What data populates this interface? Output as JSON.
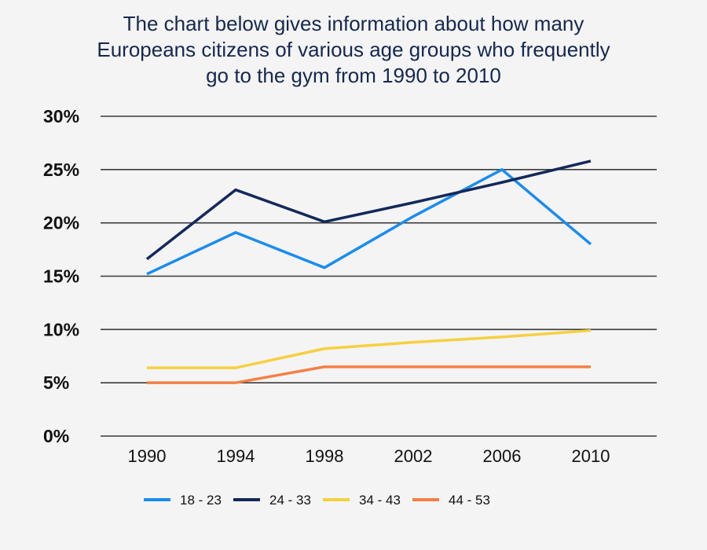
{
  "chart_data": {
    "type": "line",
    "title": "The chart below gives information about how many\nEuropeans citizens of various age groups who frequently\ngo to the gym from 1990 to 2010",
    "xlabel": "",
    "ylabel": "",
    "categories": [
      "1990",
      "1994",
      "1998",
      "2002",
      "2006",
      "2010"
    ],
    "ylim": [
      0,
      30
    ],
    "yticks": [
      0,
      5,
      10,
      15,
      20,
      25,
      30
    ],
    "ytick_labels": [
      "0%",
      "5%",
      "10%",
      "15%",
      "20%",
      "25%",
      "30%"
    ],
    "grid": true,
    "legend_position": "bottom",
    "series": [
      {
        "name": "18 - 23",
        "color": "#1a8cf0",
        "values": [
          15.2,
          19.1,
          15.8,
          20.6,
          25.0,
          18.0
        ]
      },
      {
        "name": "24 - 33",
        "color": "#13295a",
        "values": [
          16.6,
          23.1,
          20.1,
          21.9,
          23.8,
          25.8
        ]
      },
      {
        "name": "34 - 43",
        "color": "#f6d03f",
        "values": [
          6.4,
          6.4,
          8.2,
          8.8,
          9.3,
          9.9
        ]
      },
      {
        "name": "44 - 53",
        "color": "#f57f45",
        "values": [
          5.0,
          5.0,
          6.5,
          6.5,
          6.5,
          6.5
        ]
      }
    ]
  }
}
